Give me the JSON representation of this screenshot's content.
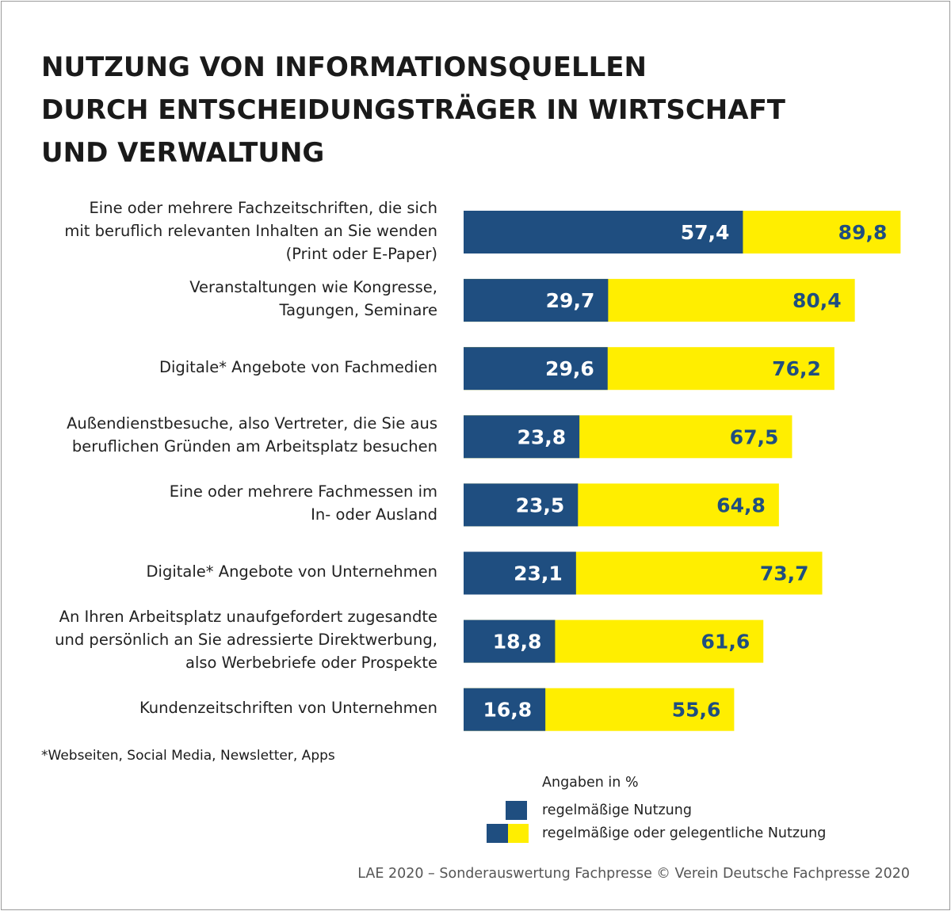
{
  "chart_data": {
    "type": "bar",
    "orientation": "horizontal",
    "title_lines": [
      "NUTZUNG VON INFORMATIONSQUELLEN",
      "DURCH ENTSCHEIDUNGSTRÄGER IN WIRTSCHAFT",
      "UND VERWALTUNG"
    ],
    "categories": [
      [
        "Eine oder mehrere Fachzeitschriften, die sich",
        "mit beruflich relevanten Inhalten an Sie wenden",
        "(Print oder E-Paper)"
      ],
      [
        "Veranstaltungen wie Kongresse,",
        "Tagungen, Seminare"
      ],
      [
        "Digitale* Angebote von Fachmedien"
      ],
      [
        "Außendienstbesuche, also Vertreter, die Sie aus",
        "beruflichen Gründen am Arbeitsplatz besuchen"
      ],
      [
        "Eine oder mehrere Fachmessen im",
        "In- oder Ausland"
      ],
      [
        "Digitale* Angebote von Unternehmen"
      ],
      [
        "An Ihren Arbeitsplatz unaufgefordert zugesandte",
        "und persönlich an Sie adressierte Direktwerbung,",
        "also Werbebriefe oder Prospekte"
      ],
      [
        "Kundenzeitschriften von Unternehmen"
      ]
    ],
    "series": [
      {
        "name": "regelmäßige Nutzung",
        "color": "#1f4e80",
        "values": [
          57.4,
          29.7,
          29.6,
          23.8,
          23.5,
          23.1,
          18.8,
          16.8
        ],
        "labels": [
          "57,4",
          "29,7",
          "29,6",
          "23,8",
          "23,5",
          "23,1",
          "18,8",
          "16,8"
        ]
      },
      {
        "name": "regelmäßige oder gelegentliche Nutzung",
        "color": "#ffee00",
        "values": [
          89.8,
          80.4,
          76.2,
          67.5,
          64.8,
          73.7,
          61.6,
          55.6
        ],
        "labels": [
          "89,8",
          "80,4",
          "76,2",
          "67,5",
          "64,8",
          "73,7",
          "61,6",
          "55,6"
        ]
      }
    ],
    "xlim": [
      0,
      100
    ],
    "grid": false,
    "legend_position": "bottom-right",
    "footnote": "*Webseiten, Social Media, Newsletter, Apps",
    "unit_label": "Angaben in %",
    "source": "LAE 2020 – Sonderauswertung Fachpresse © Verein Deutsche Fachpresse 2020"
  }
}
